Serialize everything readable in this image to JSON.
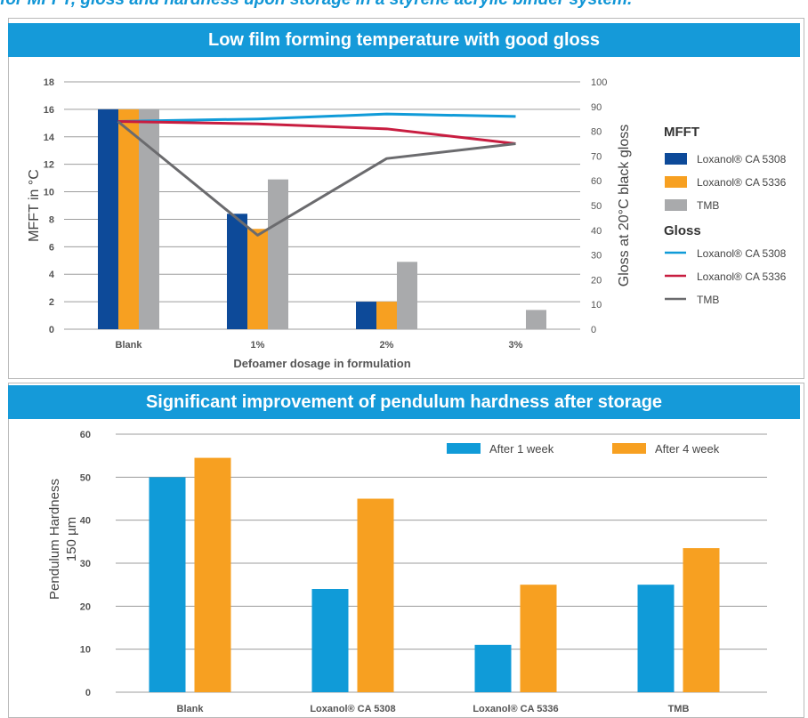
{
  "page": {
    "top_title": "for MFFT, gloss and hardness upon storage in a styrene acrylic binder system."
  },
  "colors": {
    "banner": "#159ad9",
    "dark_blue": "#0d4a99",
    "orange": "#f7a021",
    "gray": "#a9aaac",
    "light_blue": "#109bd8",
    "red": "#c81d40",
    "dark_gray": "#6b6b6e"
  },
  "chart_data": [
    {
      "type": "bar",
      "title": "Low film forming temperature with good gloss",
      "xlabel": "Defoamer dosage in formulation",
      "ylabel": "MFFT in °C",
      "y2label": "Gloss at 20°C black gloss",
      "categories": [
        "Blank",
        "1%",
        "2%",
        "3%"
      ],
      "ylim": [
        0,
        18
      ],
      "yticks": [
        0,
        2,
        4,
        6,
        8,
        10,
        12,
        14,
        16,
        18
      ],
      "y2lim": [
        0,
        100
      ],
      "y2ticks": [
        0,
        10,
        20,
        30,
        40,
        50,
        60,
        70,
        80,
        90,
        100
      ],
      "grid": true,
      "legend_position": "right",
      "legend_mfft_title": "MFFT",
      "legend_gloss_title": "Gloss",
      "series": [
        {
          "name": "Loxanol® CA 5308",
          "kind": "bar",
          "values": [
            16,
            8.4,
            2,
            0
          ]
        },
        {
          "name": "Loxanol® CA 5336",
          "kind": "bar",
          "values": [
            16,
            7.3,
            2,
            0
          ]
        },
        {
          "name": "TMB",
          "kind": "bar",
          "values": [
            16,
            10.9,
            4.9,
            1.4
          ]
        }
      ],
      "gloss_series": [
        {
          "name": "Loxanol® CA 5308",
          "kind": "line",
          "axis": "right",
          "values": [
            84,
            85,
            87,
            86
          ]
        },
        {
          "name": "Loxanol® CA 5336",
          "kind": "line",
          "axis": "right",
          "values": [
            84,
            83,
            81,
            75
          ]
        },
        {
          "name": "TMB",
          "kind": "line",
          "axis": "right",
          "values": [
            84,
            38,
            69,
            75
          ]
        }
      ]
    },
    {
      "type": "bar",
      "title": "Significant improvement of pendulum hardness after storage",
      "xlabel": "",
      "ylabel": "Pendulum Hardness 150 µm",
      "ylabel_lines": [
        "Pendulum Hardness",
        "150 µm"
      ],
      "categories": [
        "Blank",
        "Loxanol® CA 5308",
        "Loxanol® CA 5336",
        "TMB"
      ],
      "ylim": [
        0,
        60
      ],
      "yticks": [
        0,
        10,
        20,
        30,
        40,
        50,
        60
      ],
      "grid": true,
      "legend_position": "top-right",
      "series": [
        {
          "name": "After 1 week",
          "values": [
            50,
            24,
            11,
            25
          ]
        },
        {
          "name": "After 4 week",
          "values": [
            54.5,
            45,
            25,
            33.5
          ]
        }
      ]
    }
  ]
}
